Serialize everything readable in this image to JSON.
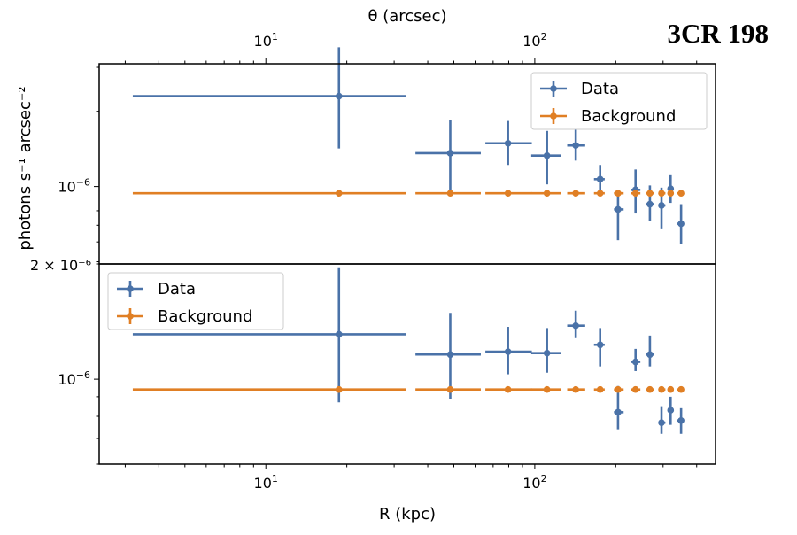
{
  "source_name": "3CR 198",
  "colors": {
    "data": "#4a72a8",
    "background": "#e07f24",
    "axes": "#000000"
  },
  "top_axis": {
    "label": "θ (arcsec)",
    "ticks": [
      {
        "value": 10,
        "base": "10",
        "exp": "1"
      },
      {
        "value": 100,
        "base": "10",
        "exp": "2"
      }
    ]
  },
  "x_axis": {
    "label": "R (kpc)",
    "scale": "log",
    "range": [
      2.4,
      470
    ],
    "ticks": [
      {
        "value": 10,
        "base": "10",
        "exp": "1"
      },
      {
        "value": 100,
        "base": "10",
        "exp": "2"
      }
    ]
  },
  "y_axis": {
    "label": "photons s⁻¹ arcsec⁻²",
    "shared_tick_label": "2 × 10⁻⁶"
  },
  "chart_data": [
    {
      "type": "scatter",
      "panel": "top",
      "xscale": "log",
      "yscale": "log",
      "xlim": [
        2.4,
        470
      ],
      "ylim": [
        4.9e-07,
        3.1e-06
      ],
      "yticks": [
        {
          "value": 1e-06,
          "base": "10",
          "exp": "−6"
        }
      ],
      "legend": {
        "placement": "top-right",
        "entries": [
          "Data",
          "Background"
        ]
      },
      "series": [
        {
          "name": "Data",
          "color": "#4a72a8",
          "x": [
            18.7,
            48.5,
            79.5,
            111,
            142,
            175,
            204,
            237,
            268,
            296,
            320,
            350
          ],
          "xerr_low": [
            15.5,
            12.5,
            14,
            14,
            10,
            9,
            7,
            10,
            8,
            7,
            7,
            12
          ],
          "xerr_high": [
            14.5,
            14.5,
            18,
            14,
            12,
            7,
            10,
            10,
            10,
            10,
            9,
            8
          ],
          "y": [
            2.3e-06,
            1.36e-06,
            1.49e-06,
            1.33e-06,
            1.46e-06,
            1.07e-06,
            8.1e-07,
            9.7e-07,
            8.5e-07,
            8.4e-07,
            9.8e-07,
            7.1e-07
          ],
          "yerr_low": [
            8.8e-07,
            4.1e-07,
            2.7e-07,
            3.1e-07,
            1.9e-07,
            1.4e-07,
            2e-07,
            1.9e-07,
            1.2e-07,
            1.6e-07,
            1.2e-07,
            1.2e-07
          ],
          "yerr_high": [
            1.31e-06,
            4.9e-07,
            3.4e-07,
            3.4e-07,
            2.3e-07,
            1.5e-07,
            1.5e-07,
            2e-07,
            1.6e-07,
            1.5e-07,
            1.3e-07,
            1.4e-07
          ]
        },
        {
          "name": "Background",
          "color": "#e07f24",
          "x": [
            18.7,
            48.5,
            79.5,
            111,
            142,
            175,
            204,
            237,
            268,
            296,
            320,
            350
          ],
          "xerr_low": [
            15.5,
            12.5,
            14,
            14,
            10,
            9,
            7,
            10,
            8,
            7,
            7,
            12
          ],
          "xerr_high": [
            14.5,
            14.5,
            18,
            14,
            12,
            7,
            10,
            10,
            10,
            10,
            9,
            8
          ],
          "y": [
            9.4e-07,
            9.4e-07,
            9.4e-07,
            9.4e-07,
            9.4e-07,
            9.4e-07,
            9.4e-07,
            9.4e-07,
            9.4e-07,
            9.4e-07,
            9.4e-07,
            9.4e-07
          ],
          "yerr_low": [
            0,
            0,
            0,
            0,
            0,
            0,
            0,
            0,
            0,
            0,
            0,
            0
          ],
          "yerr_high": [
            0,
            0,
            0,
            0,
            0,
            0,
            0,
            0,
            0,
            0,
            0,
            0
          ]
        }
      ]
    },
    {
      "type": "scatter",
      "panel": "bottom",
      "xscale": "log",
      "yscale": "log",
      "xlim": [
        2.4,
        470
      ],
      "ylim": [
        6e-07,
        2e-06
      ],
      "yticks": [
        {
          "value": 1e-06,
          "base": "10",
          "exp": "−6"
        }
      ],
      "legend": {
        "placement": "top-left",
        "entries": [
          "Data",
          "Background"
        ]
      },
      "series": [
        {
          "name": "Data",
          "color": "#4a72a8",
          "x": [
            18.7,
            48.5,
            79.5,
            111,
            142,
            175,
            204,
            237,
            268,
            296,
            320,
            350
          ],
          "xerr_low": [
            15.5,
            12.5,
            14,
            14,
            10,
            9,
            7,
            10,
            8,
            7,
            7,
            12
          ],
          "xerr_high": [
            14.5,
            14.5,
            18,
            14,
            12,
            7,
            10,
            10,
            10,
            10,
            9,
            8
          ],
          "y": [
            1.31e-06,
            1.16e-06,
            1.18e-06,
            1.17e-06,
            1.38e-06,
            1.23e-06,
            8.2e-07,
            1.11e-06,
            1.16e-06,
            7.7e-07,
            8.3e-07,
            7.8e-07
          ],
          "yerr_low": [
            4.4e-07,
            2.7e-07,
            1.5e-07,
            1.3e-07,
            1e-07,
            1.5e-07,
            8e-08,
            6e-08,
            8e-08,
            5e-08,
            7e-08,
            6e-08
          ],
          "yerr_high": [
            6.5e-07,
            3.3e-07,
            1.9e-07,
            1.9e-07,
            1.3e-07,
            1.3e-07,
            1.4e-07,
            9e-08,
            1.4e-07,
            8e-08,
            7e-08,
            6e-08
          ]
        },
        {
          "name": "Background",
          "color": "#e07f24",
          "x": [
            18.7,
            48.5,
            79.5,
            111,
            142,
            175,
            204,
            237,
            268,
            296,
            320,
            350
          ],
          "xerr_low": [
            15.5,
            12.5,
            14,
            14,
            10,
            9,
            7,
            10,
            8,
            7,
            7,
            12
          ],
          "xerr_high": [
            14.5,
            14.5,
            18,
            14,
            12,
            7,
            10,
            10,
            10,
            10,
            9,
            8
          ],
          "y": [
            9.4e-07,
            9.4e-07,
            9.4e-07,
            9.4e-07,
            9.4e-07,
            9.4e-07,
            9.4e-07,
            9.4e-07,
            9.4e-07,
            9.4e-07,
            9.4e-07,
            9.4e-07
          ],
          "yerr_low": [
            0,
            0,
            0,
            0,
            0,
            0,
            0,
            0,
            0,
            0,
            0,
            0
          ],
          "yerr_high": [
            0,
            0,
            0,
            0,
            0,
            0,
            0,
            0,
            0,
            0,
            0,
            0
          ]
        }
      ]
    }
  ]
}
